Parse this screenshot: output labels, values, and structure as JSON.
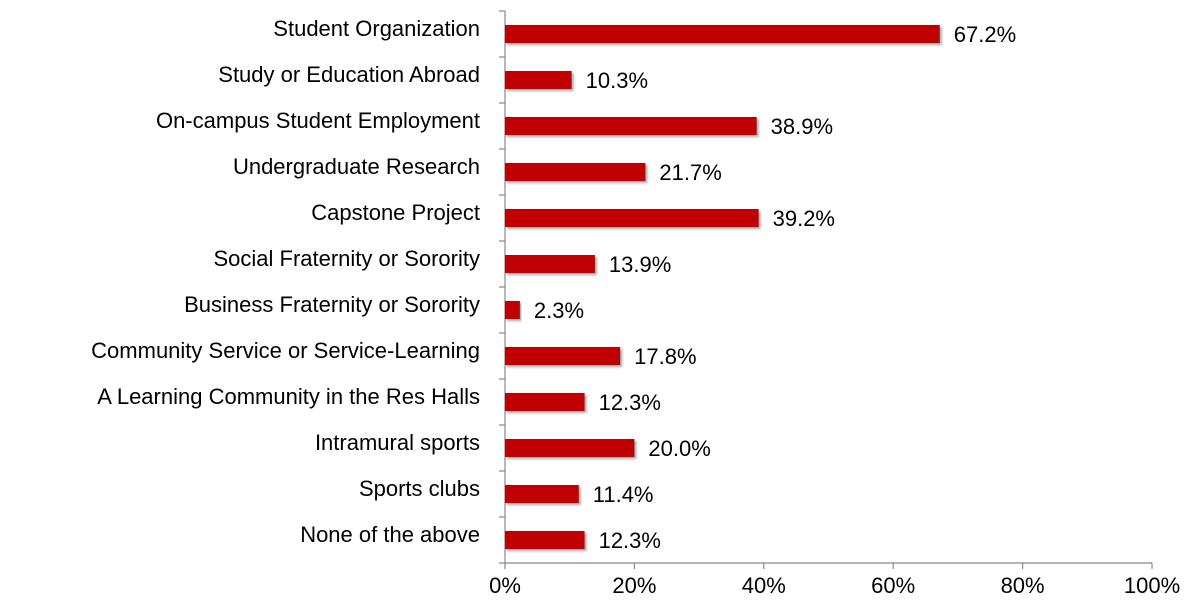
{
  "chart_data": {
    "type": "bar",
    "orientation": "horizontal",
    "categories": [
      "Student Organization",
      "Study or Education Abroad",
      "On-campus Student Employment",
      "Undergraduate Research",
      "Capstone Project",
      "Social Fraternity or Sorority",
      "Business Fraternity or Sorority",
      "Community Service or Service-Learning",
      "A Learning Community in the Res Halls",
      "Intramural sports",
      "Sports clubs",
      "None of the above"
    ],
    "values": [
      67.2,
      10.3,
      38.9,
      21.7,
      39.2,
      13.9,
      2.3,
      17.8,
      12.3,
      20.0,
      11.4,
      12.3
    ],
    "value_labels": [
      "67.2%",
      "10.3%",
      "38.9%",
      "21.7%",
      "39.2%",
      "13.9%",
      "2.3%",
      "17.8%",
      "12.3%",
      "20.0%",
      "11.4%",
      "12.3%"
    ],
    "color": "#c00000",
    "xlim": [
      0,
      100
    ],
    "xticks": [
      {
        "value": 0,
        "label": "0%"
      },
      {
        "value": 20,
        "label": "20%"
      },
      {
        "value": 40,
        "label": "40%"
      },
      {
        "value": 60,
        "label": "60%"
      },
      {
        "value": 80,
        "label": "80%"
      },
      {
        "value": 100,
        "label": "100%"
      }
    ]
  }
}
